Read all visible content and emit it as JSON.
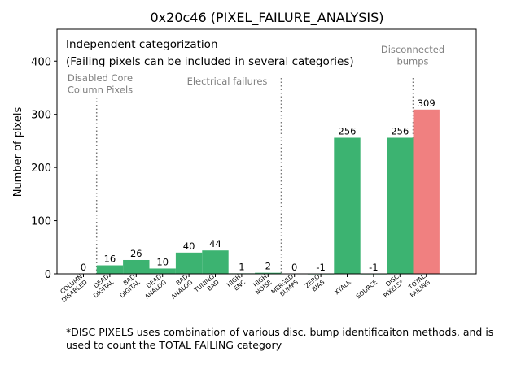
{
  "chart_data": {
    "type": "bar",
    "title": "0x20c46 (PIXEL_FAILURE_ANALYSIS)",
    "xlabel": "",
    "ylabel": "Number of pixels",
    "ylim": [
      0,
      460
    ],
    "yticks": [
      0,
      100,
      200,
      300,
      400
    ],
    "categories": [
      [
        "COLUMN",
        "DISABLED"
      ],
      [
        "DEAD",
        "DIGITAL"
      ],
      [
        "BAD",
        "DIGITAL"
      ],
      [
        "DEAD",
        "ANALOG"
      ],
      [
        "BAD",
        "ANALOG"
      ],
      [
        "TUNING",
        "BAD"
      ],
      [
        "HIGH",
        "ENC"
      ],
      [
        "HIGH",
        "NOISE"
      ],
      [
        "MERGED",
        "BUMPS"
      ],
      [
        "ZERO",
        "BIAS"
      ],
      [
        "XTALK"
      ],
      [
        "SOURCE"
      ],
      [
        "DISC",
        "PIXELS*"
      ],
      [
        "TOTAL",
        "FAILING"
      ]
    ],
    "values": [
      0,
      16,
      26,
      10,
      40,
      44,
      1,
      2,
      0,
      -1,
      256,
      -1,
      256,
      309
    ],
    "value_labels": [
      "0",
      "16",
      "26",
      "10",
      "40",
      "44",
      "1",
      "2",
      "0",
      "-1",
      "256",
      "-1",
      "256",
      "309"
    ],
    "bar_colors": [
      "#3cb371",
      "#3cb371",
      "#3cb371",
      "#3cb371",
      "#3cb371",
      "#3cb371",
      "#3cb371",
      "#3cb371",
      "#3cb371",
      "#3cb371",
      "#3cb371",
      "#3cb371",
      "#3cb371",
      "#f08080"
    ],
    "separators_after_category_index": [
      0,
      7,
      12
    ],
    "section_labels": [
      [
        "Disabled Core",
        "Column Pixels"
      ],
      [
        "Electrical failures"
      ],
      [
        "Disconnected",
        "bumps"
      ]
    ],
    "box_text": [
      "Independent categorization",
      "(Failing pixels can be included in several categories)"
    ],
    "footnote": "*DISC PIXELS uses combination of various disc. bump identificaiton methods, and is used to count the TOTAL FAILING category"
  }
}
